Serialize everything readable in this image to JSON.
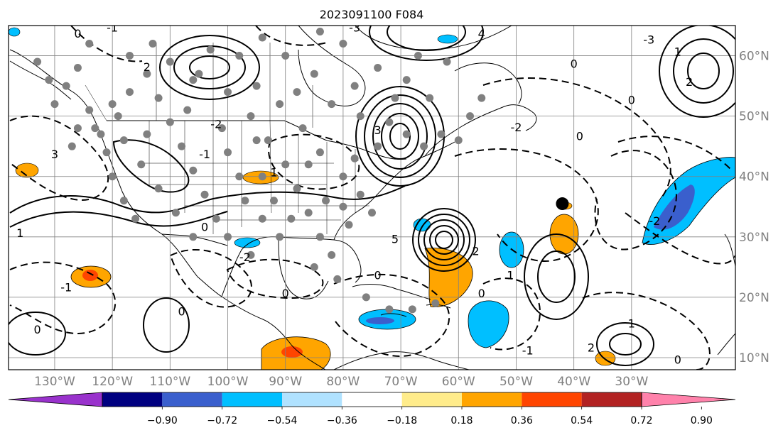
{
  "title": "2023091100 F084",
  "map": {
    "lon_range": [
      -138,
      -12
    ],
    "lat_range": [
      8,
      65
    ],
    "lon_ticks": [
      {
        "value": -130,
        "label": "130°W"
      },
      {
        "value": -120,
        "label": "120°W"
      },
      {
        "value": -110,
        "label": "110°W"
      },
      {
        "value": -100,
        "label": "100°W"
      },
      {
        "value": -90,
        "label": "90°W"
      },
      {
        "value": -80,
        "label": "80°W"
      },
      {
        "value": -70,
        "label": "70°W"
      },
      {
        "value": -60,
        "label": "60°W"
      },
      {
        "value": -50,
        "label": "50°W"
      },
      {
        "value": -40,
        "label": "40°W"
      },
      {
        "value": -30,
        "label": "30°W"
      }
    ],
    "lat_ticks": [
      {
        "value": 10,
        "label": "10°N"
      },
      {
        "value": 20,
        "label": "20°N"
      },
      {
        "value": 30,
        "label": "30°N"
      },
      {
        "value": 40,
        "label": "40°N"
      },
      {
        "value": 50,
        "label": "50°N"
      },
      {
        "value": 60,
        "label": "60°N"
      }
    ],
    "grid": true,
    "marker": {
      "lon": -42,
      "lat": 35.5,
      "color": "#000000"
    },
    "station_dot_color": "#808080",
    "contour_labels": [
      {
        "text": "0",
        "lon": -126,
        "lat": 63
      },
      {
        "text": "-1",
        "lon": -120,
        "lat": 64
      },
      {
        "text": "2",
        "lon": -114,
        "lat": 57.5
      },
      {
        "text": "-2",
        "lon": -102,
        "lat": 48
      },
      {
        "text": "3",
        "lon": -130,
        "lat": 43
      },
      {
        "text": "-1",
        "lon": -104,
        "lat": 43
      },
      {
        "text": "1",
        "lon": -92,
        "lat": 40
      },
      {
        "text": "0",
        "lon": -104,
        "lat": 31
      },
      {
        "text": "-2",
        "lon": -97,
        "lat": 26
      },
      {
        "text": "1",
        "lon": -136,
        "lat": 30
      },
      {
        "text": "-1",
        "lon": -128,
        "lat": 21
      },
      {
        "text": "0",
        "lon": -133,
        "lat": 14
      },
      {
        "text": "0",
        "lon": -108,
        "lat": 17
      },
      {
        "text": "0",
        "lon": -90,
        "lat": 20
      },
      {
        "text": "3",
        "lon": -74,
        "lat": 47
      },
      {
        "text": "5",
        "lon": -71,
        "lat": 29
      },
      {
        "text": "0",
        "lon": -74,
        "lat": 23
      },
      {
        "text": "2",
        "lon": -57,
        "lat": 27
      },
      {
        "text": "1",
        "lon": -51,
        "lat": 23
      },
      {
        "text": "0",
        "lon": -56,
        "lat": 20
      },
      {
        "text": "-2",
        "lon": -50,
        "lat": 47.5
      },
      {
        "text": "0",
        "lon": -39,
        "lat": 46
      },
      {
        "text": "-3",
        "lon": -27,
        "lat": 62
      },
      {
        "text": "1",
        "lon": -22,
        "lat": 60
      },
      {
        "text": "2",
        "lon": -20,
        "lat": 55
      },
      {
        "text": "0",
        "lon": -30,
        "lat": 52
      },
      {
        "text": "-1",
        "lon": -48,
        "lat": 10.5
      },
      {
        "text": "2",
        "lon": -37,
        "lat": 11
      },
      {
        "text": "1",
        "lon": -30,
        "lat": 15
      },
      {
        "text": "0",
        "lon": -22,
        "lat": 9
      },
      {
        "text": "-2",
        "lon": -26,
        "lat": 32
      },
      {
        "text": "0",
        "lon": -40,
        "lat": 58
      },
      {
        "text": "4",
        "lon": -56,
        "lat": 63
      },
      {
        "text": "-3",
        "lon": -78,
        "lat": 64
      }
    ]
  },
  "colorbar": {
    "ticks": [
      "−0.90",
      "−0.72",
      "−0.54",
      "−0.36",
      "−0.18",
      "0.18",
      "0.36",
      "0.54",
      "0.72",
      "0.90"
    ],
    "colors": [
      "#9932cc",
      "#000080",
      "#3a5fcd",
      "#00bfff",
      "#b0e2ff",
      "#ffffff",
      "#ffec8b",
      "#ffa500",
      "#ff4500",
      "#b22222",
      "#ff82ab"
    ],
    "extend": "both"
  }
}
